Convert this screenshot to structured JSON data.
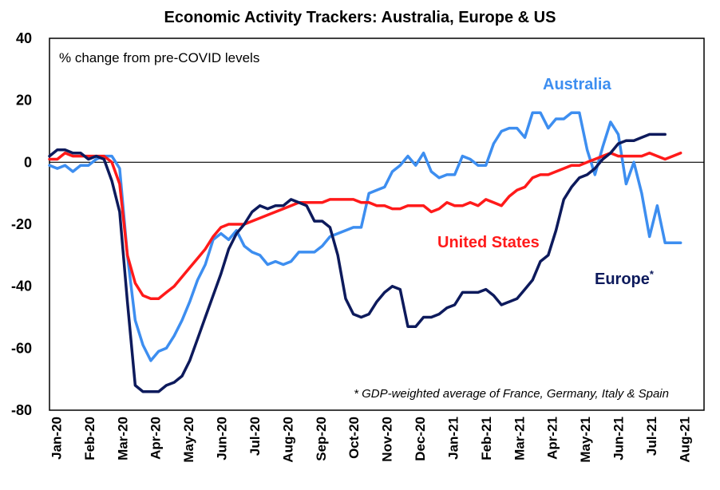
{
  "chart_data": {
    "type": "line",
    "title": "Economic Activity Trackers: Australia, Europe & US",
    "subtitle": "% change from pre-COVID levels",
    "footnote": "* GDP-weighted average of France, Germany, Italy & Spain",
    "ylim": [
      -80,
      40
    ],
    "yticks": [
      "40",
      "20",
      "0",
      "-20",
      "-40",
      "-60",
      "-80"
    ],
    "ytick_values": [
      40,
      20,
      0,
      -20,
      -40,
      -60,
      -80
    ],
    "xlim": [
      0,
      84
    ],
    "xtick_labels": [
      "Jan-20",
      "Feb-20",
      "Mar-20",
      "Apr-20",
      "May-20",
      "Jun-20",
      "Jul-20",
      "Aug-20",
      "Sep-20",
      "Oct-20",
      "Nov-20",
      "Dec-20",
      "Jan-21",
      "Feb-21",
      "Mar-21",
      "Apr-21",
      "May-21",
      "Jun-21",
      "Jul-21",
      "Aug-21"
    ],
    "zero_line": true,
    "series": [
      {
        "name": "Australia",
        "label_display": "Australia",
        "color": "#3d8ef0",
        "points": [
          [
            0,
            -1
          ],
          [
            1,
            -2
          ],
          [
            2,
            -1
          ],
          [
            3,
            -3
          ],
          [
            4,
            -1
          ],
          [
            5,
            -1
          ],
          [
            6,
            1
          ],
          [
            7,
            2
          ],
          [
            8,
            2
          ],
          [
            9,
            -2
          ],
          [
            10,
            -30
          ],
          [
            11,
            -51
          ],
          [
            12,
            -59
          ],
          [
            13,
            -64
          ],
          [
            14,
            -61
          ],
          [
            15,
            -60
          ],
          [
            16,
            -56
          ],
          [
            17,
            -51
          ],
          [
            18,
            -45
          ],
          [
            19,
            -38
          ],
          [
            20,
            -33
          ],
          [
            21,
            -25
          ],
          [
            22,
            -23
          ],
          [
            23,
            -25
          ],
          [
            24,
            -22
          ],
          [
            25,
            -27
          ],
          [
            26,
            -29
          ],
          [
            27,
            -30
          ],
          [
            28,
            -33
          ],
          [
            29,
            -32
          ],
          [
            30,
            -33
          ],
          [
            31,
            -32
          ],
          [
            32,
            -29
          ],
          [
            33,
            -29
          ],
          [
            34,
            -29
          ],
          [
            35,
            -27
          ],
          [
            36,
            -24
          ],
          [
            37,
            -23
          ],
          [
            38,
            -22
          ],
          [
            39,
            -21
          ],
          [
            40,
            -21
          ],
          [
            41,
            -10
          ],
          [
            42,
            -9
          ],
          [
            43,
            -8
          ],
          [
            44,
            -3
          ],
          [
            45,
            -1
          ],
          [
            46,
            2
          ],
          [
            47,
            -1
          ],
          [
            48,
            3
          ],
          [
            49,
            -3
          ],
          [
            50,
            -5
          ],
          [
            51,
            -4
          ],
          [
            52,
            -4
          ],
          [
            53,
            2
          ],
          [
            54,
            1
          ],
          [
            55,
            -1
          ],
          [
            56,
            -1
          ],
          [
            57,
            6
          ],
          [
            58,
            10
          ],
          [
            59,
            11
          ],
          [
            60,
            11
          ],
          [
            61,
            8
          ],
          [
            62,
            16
          ],
          [
            63,
            16
          ],
          [
            64,
            11
          ],
          [
            65,
            14
          ],
          [
            66,
            14
          ],
          [
            67,
            16
          ],
          [
            68,
            16
          ],
          [
            69,
            4
          ],
          [
            70,
            -4
          ],
          [
            71,
            5
          ],
          [
            72,
            13
          ],
          [
            73,
            9
          ],
          [
            74,
            -7
          ],
          [
            75,
            0
          ],
          [
            76,
            -10
          ],
          [
            77,
            -24
          ],
          [
            78,
            -14
          ],
          [
            79,
            -26
          ],
          [
            80,
            -26
          ],
          [
            81,
            -26
          ]
        ]
      },
      {
        "name": "United States",
        "label_display": "United States",
        "color": "#ff1a1a",
        "points": [
          [
            0,
            1
          ],
          [
            1,
            1
          ],
          [
            2,
            3
          ],
          [
            3,
            2
          ],
          [
            4,
            2
          ],
          [
            5,
            2
          ],
          [
            6,
            2
          ],
          [
            7,
            2
          ],
          [
            8,
            0
          ],
          [
            9,
            -7
          ],
          [
            10,
            -30
          ],
          [
            11,
            -39
          ],
          [
            12,
            -43
          ],
          [
            13,
            -44
          ],
          [
            14,
            -44
          ],
          [
            15,
            -42
          ],
          [
            16,
            -40
          ],
          [
            17,
            -37
          ],
          [
            18,
            -34
          ],
          [
            19,
            -31
          ],
          [
            20,
            -28
          ],
          [
            21,
            -24
          ],
          [
            22,
            -21
          ],
          [
            23,
            -20
          ],
          [
            24,
            -20
          ],
          [
            25,
            -20
          ],
          [
            26,
            -19
          ],
          [
            27,
            -18
          ],
          [
            28,
            -17
          ],
          [
            29,
            -16
          ],
          [
            30,
            -15
          ],
          [
            31,
            -14
          ],
          [
            32,
            -13
          ],
          [
            33,
            -13
          ],
          [
            34,
            -13
          ],
          [
            35,
            -13
          ],
          [
            36,
            -12
          ],
          [
            37,
            -12
          ],
          [
            38,
            -12
          ],
          [
            39,
            -12
          ],
          [
            40,
            -13
          ],
          [
            41,
            -13
          ],
          [
            42,
            -14
          ],
          [
            43,
            -14
          ],
          [
            44,
            -15
          ],
          [
            45,
            -15
          ],
          [
            46,
            -14
          ],
          [
            47,
            -14
          ],
          [
            48,
            -14
          ],
          [
            49,
            -16
          ],
          [
            50,
            -15
          ],
          [
            51,
            -13
          ],
          [
            52,
            -14
          ],
          [
            53,
            -14
          ],
          [
            54,
            -13
          ],
          [
            55,
            -14
          ],
          [
            56,
            -12
          ],
          [
            57,
            -13
          ],
          [
            58,
            -14
          ],
          [
            59,
            -11
          ],
          [
            60,
            -9
          ],
          [
            61,
            -8
          ],
          [
            62,
            -5
          ],
          [
            63,
            -4
          ],
          [
            64,
            -4
          ],
          [
            65,
            -3
          ],
          [
            66,
            -2
          ],
          [
            67,
            -1
          ],
          [
            68,
            -1
          ],
          [
            69,
            0
          ],
          [
            70,
            1
          ],
          [
            71,
            2
          ],
          [
            72,
            3
          ],
          [
            73,
            2
          ],
          [
            74,
            2
          ],
          [
            75,
            2
          ],
          [
            76,
            2
          ],
          [
            77,
            3
          ],
          [
            78,
            2
          ],
          [
            79,
            1
          ],
          [
            80,
            2
          ],
          [
            81,
            3
          ]
        ]
      },
      {
        "name": "Europe*",
        "label_display": "Europe",
        "label_suffix": "*",
        "color": "#0d1a5c",
        "points": [
          [
            0,
            2
          ],
          [
            1,
            4
          ],
          [
            2,
            4
          ],
          [
            3,
            3
          ],
          [
            4,
            3
          ],
          [
            5,
            1
          ],
          [
            6,
            2
          ],
          [
            7,
            1
          ],
          [
            8,
            -6
          ],
          [
            9,
            -16
          ],
          [
            10,
            -45
          ],
          [
            11,
            -72
          ],
          [
            12,
            -74
          ],
          [
            13,
            -74
          ],
          [
            14,
            -74
          ],
          [
            15,
            -72
          ],
          [
            16,
            -71
          ],
          [
            17,
            -69
          ],
          [
            18,
            -64
          ],
          [
            19,
            -57
          ],
          [
            20,
            -50
          ],
          [
            21,
            -43
          ],
          [
            22,
            -36
          ],
          [
            23,
            -28
          ],
          [
            24,
            -23
          ],
          [
            25,
            -20
          ],
          [
            26,
            -16
          ],
          [
            27,
            -14
          ],
          [
            28,
            -15
          ],
          [
            29,
            -14
          ],
          [
            30,
            -14
          ],
          [
            31,
            -12
          ],
          [
            32,
            -13
          ],
          [
            33,
            -14
          ],
          [
            34,
            -19
          ],
          [
            35,
            -19
          ],
          [
            36,
            -21
          ],
          [
            37,
            -30
          ],
          [
            38,
            -44
          ],
          [
            39,
            -49
          ],
          [
            40,
            -50
          ],
          [
            41,
            -49
          ],
          [
            42,
            -45
          ],
          [
            43,
            -42
          ],
          [
            44,
            -40
          ],
          [
            45,
            -41
          ],
          [
            46,
            -53
          ],
          [
            47,
            -53
          ],
          [
            48,
            -50
          ],
          [
            49,
            -50
          ],
          [
            50,
            -49
          ],
          [
            51,
            -47
          ],
          [
            52,
            -46
          ],
          [
            53,
            -42
          ],
          [
            54,
            -42
          ],
          [
            55,
            -42
          ],
          [
            56,
            -41
          ],
          [
            57,
            -43
          ],
          [
            58,
            -46
          ],
          [
            59,
            -45
          ],
          [
            60,
            -44
          ],
          [
            61,
            -41
          ],
          [
            62,
            -38
          ],
          [
            63,
            -32
          ],
          [
            64,
            -30
          ],
          [
            65,
            -22
          ],
          [
            66,
            -12
          ],
          [
            67,
            -8
          ],
          [
            68,
            -5
          ],
          [
            69,
            -4
          ],
          [
            70,
            -2
          ],
          [
            71,
            1
          ],
          [
            72,
            3
          ],
          [
            73,
            6
          ],
          [
            74,
            7
          ],
          [
            75,
            7
          ],
          [
            76,
            8
          ],
          [
            77,
            9
          ],
          [
            78,
            9
          ],
          [
            79,
            9
          ]
        ]
      }
    ]
  }
}
